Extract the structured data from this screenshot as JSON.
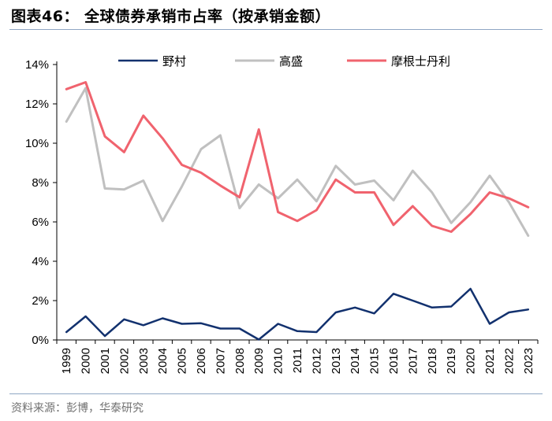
{
  "header": {
    "title": "图表46：  全球债券承销市占率（按承销金额）"
  },
  "footer": {
    "source": "资料来源：彭博，华泰研究"
  },
  "chart_data": {
    "type": "line",
    "x": [
      "1999",
      "2000",
      "2001",
      "2002",
      "2003",
      "2004",
      "2005",
      "2006",
      "2007",
      "2008",
      "2009",
      "2010",
      "2011",
      "2012",
      "2013",
      "2014",
      "2015",
      "2016",
      "2017",
      "2018",
      "2019",
      "2020",
      "2021",
      "2022",
      "2023"
    ],
    "ylim": [
      0,
      14
    ],
    "yticks": [
      0,
      2,
      4,
      6,
      8,
      10,
      12,
      14
    ],
    "ytick_labels": [
      "0%",
      "2%",
      "4%",
      "6%",
      "8%",
      "10%",
      "12%",
      "14%"
    ],
    "yunit": "%",
    "grid": false,
    "legend": {
      "placement": "top"
    },
    "series": [
      {
        "name": "野村",
        "color": "#12316e",
        "values": [
          0.4,
          1.2,
          0.2,
          1.05,
          0.75,
          1.1,
          0.82,
          0.85,
          0.58,
          0.58,
          0.02,
          0.82,
          0.45,
          0.4,
          1.4,
          1.65,
          1.35,
          2.35,
          2.0,
          1.65,
          1.7,
          2.6,
          0.82,
          1.4,
          1.55
        ]
      },
      {
        "name": "高盛",
        "color": "#c0c0c0",
        "values": [
          11.1,
          12.8,
          7.7,
          7.65,
          8.1,
          6.05,
          7.8,
          9.7,
          10.4,
          6.7,
          7.9,
          7.2,
          8.15,
          7.05,
          8.85,
          7.9,
          8.1,
          7.1,
          8.6,
          7.5,
          5.95,
          7.0,
          8.35,
          7.0,
          5.3
        ]
      },
      {
        "name": "摩根士丹利",
        "color": "#f0636e",
        "values": [
          12.75,
          13.1,
          10.35,
          9.55,
          11.4,
          10.25,
          8.9,
          8.5,
          7.85,
          7.25,
          10.7,
          6.5,
          6.05,
          6.6,
          8.15,
          7.5,
          7.5,
          5.85,
          6.8,
          5.8,
          5.5,
          6.4,
          7.5,
          7.2,
          6.75
        ]
      }
    ]
  }
}
